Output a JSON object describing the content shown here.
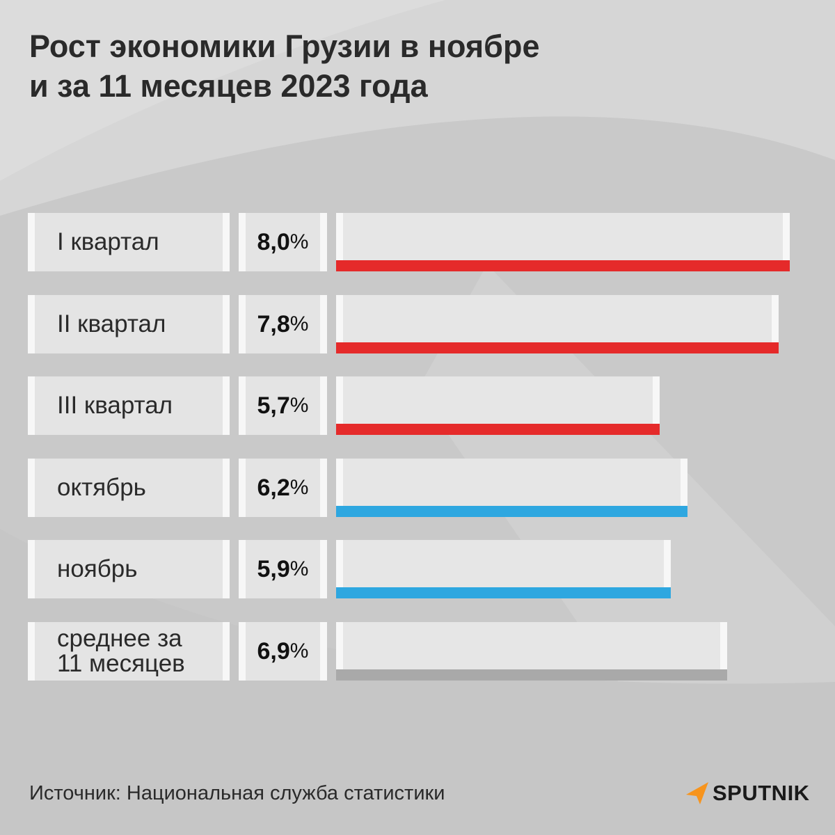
{
  "title_lines": [
    "Рост экономики Грузии в ноябре",
    "и за 11 месяцев  2023 года"
  ],
  "source": "Источник: Национальная служба статистики",
  "logo": {
    "icon": "sputnik-arrow-icon",
    "text": "SPUTNIK",
    "color": "#f7941d"
  },
  "colors": {
    "quarter": "#e52a2a",
    "month": "#2ea7e0",
    "average": "#a9a9a9",
    "background": "#cbcbcb",
    "cell": "#e4e4e4"
  },
  "chart_data": {
    "type": "bar",
    "orientation": "horizontal",
    "title": "Рост экономики Грузии в ноябре и за 11 месяцев  2023 года",
    "categories": [
      "I квартал",
      "II квартал",
      "III квартал",
      "октябрь",
      "ноябрь",
      "среднее за 11 месяцев"
    ],
    "labels": [
      "I квартал",
      "II квартал",
      "III квартал",
      "октябрь",
      "ноябрь",
      "среднее за\n11 месяцев"
    ],
    "values": [
      8.0,
      7.8,
      5.7,
      6.2,
      5.9,
      6.9
    ],
    "value_labels": [
      "8,0",
      "7,8",
      "5,7",
      "6,2",
      "5,9",
      "6,9"
    ],
    "unit": "%",
    "bar_colors": [
      "#e52a2a",
      "#e52a2a",
      "#e52a2a",
      "#2ea7e0",
      "#2ea7e0",
      "#a9a9a9"
    ],
    "xlim": [
      0,
      8.0
    ],
    "grid": false,
    "legend": "none"
  }
}
